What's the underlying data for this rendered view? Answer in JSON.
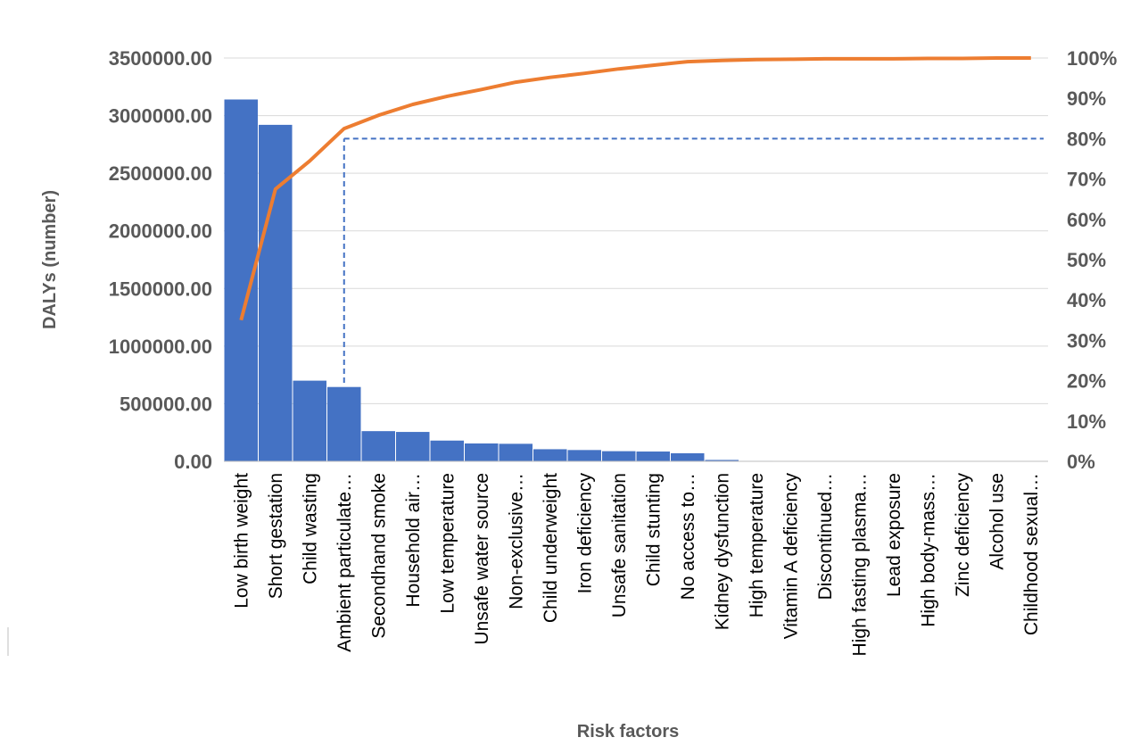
{
  "chart_data": {
    "type": "bar",
    "xlabel": "Risk factors",
    "ylabel": "DALYs (number)",
    "ylim": [
      0,
      3500000
    ],
    "y_ticks": [
      "0.00",
      "500000.00",
      "1000000.00",
      "1500000.00",
      "2000000.00",
      "2500000.00",
      "3000000.00",
      "3500000.00"
    ],
    "y2lim": [
      0,
      100
    ],
    "y2_ticks": [
      "0%",
      "10%",
      "20%",
      "30%",
      "40%",
      "50%",
      "60%",
      "70%",
      "80%",
      "90%",
      "100%"
    ],
    "grid": true,
    "categories": [
      "Low birth weight",
      "Short gestation",
      "Child wasting",
      "Ambient particulate…",
      "Secondhand smoke",
      "Household air…",
      "Low temperature",
      "Unsafe water source",
      "Non-exclusive…",
      "Child underweight",
      "Iron deficiency",
      "Unsafe sanitation",
      "Child stunting",
      "No access to…",
      "Kidney dysfunction",
      "High temperature",
      "Vitamin A deficiency",
      "Discontinued…",
      "High fasting plasma…",
      "Lead exposure",
      "High body-mass…",
      "Zinc deficiency",
      "Alcohol use",
      "Childhood sexual…"
    ],
    "series": [
      {
        "type": "bar",
        "color": "#4472c4",
        "values": [
          3140000,
          2920000,
          700000,
          645000,
          262000,
          255000,
          180000,
          155000,
          152000,
          105000,
          98000,
          88000,
          85000,
          70000,
          12000,
          4000,
          3000,
          2000,
          1500,
          1000,
          800,
          500,
          300,
          200
        ]
      },
      {
        "type": "line",
        "axis": "secondary",
        "color": "#ed7d31",
        "values": [
          35,
          67.5,
          74.5,
          82.5,
          85.8,
          88.5,
          90.5,
          92.2,
          94,
          95.2,
          96.2,
          97.3,
          98.2,
          99.1,
          99.4,
          99.6,
          99.7,
          99.8,
          99.8,
          99.8,
          99.9,
          99.9,
          100,
          100
        ]
      }
    ],
    "threshold": {
      "value": 80,
      "axis": "secondary",
      "category_index": 3,
      "color": "#4472c4",
      "style": "dashed"
    }
  }
}
